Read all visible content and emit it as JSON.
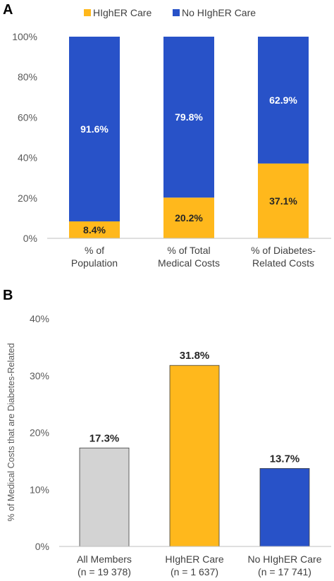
{
  "panels": {
    "a_letter": "A",
    "b_letter": "B"
  },
  "colors": {
    "higher_care": "#FFB81C",
    "no_higher_care": "#2852C8",
    "all_members": "#D3D3D3",
    "bar_outline": "#404040"
  },
  "chart_data": [
    {
      "type": "bar",
      "stacked": true,
      "percent_stacked": true,
      "legend": {
        "position": "top",
        "entries": [
          "HIghER Care",
          "No HIghER Care"
        ]
      },
      "categories": [
        [
          "% of",
          "Population"
        ],
        [
          "% of Total",
          "Medical Costs"
        ],
        [
          "% of Diabetes-",
          "Related Costs"
        ]
      ],
      "series": [
        {
          "name": "HIghER Care",
          "values": [
            8.4,
            20.2,
            37.1
          ],
          "labels": [
            "8.4%",
            "20.2%",
            "37.1%"
          ]
        },
        {
          "name": "No HIghER Care",
          "values": [
            91.6,
            79.8,
            62.9
          ],
          "labels": [
            "91.6%",
            "79.8%",
            "62.9%"
          ]
        }
      ],
      "ylim": [
        0,
        100
      ],
      "yticks": [
        0,
        20,
        40,
        60,
        80,
        100
      ],
      "ytick_labels": [
        "0%",
        "20%",
        "40%",
        "60%",
        "80%",
        "100%"
      ],
      "grid": false
    },
    {
      "type": "bar",
      "categories": [
        [
          "All Members",
          "(n = 19 378)"
        ],
        [
          "HIghER Care",
          "(n = 1 637)"
        ],
        [
          "No HIghER Care",
          "(n = 17 741)"
        ]
      ],
      "values": [
        17.3,
        31.8,
        13.7
      ],
      "labels": [
        "17.3%",
        "31.8%",
        "13.7%"
      ],
      "ylabel": "% of Medical Costs that are Diabetes-Related",
      "ylim": [
        0,
        40
      ],
      "yticks": [
        0,
        10,
        20,
        30,
        40
      ],
      "ytick_labels": [
        "0%",
        "10%",
        "20%",
        "30%",
        "40%"
      ],
      "grid": false
    }
  ]
}
